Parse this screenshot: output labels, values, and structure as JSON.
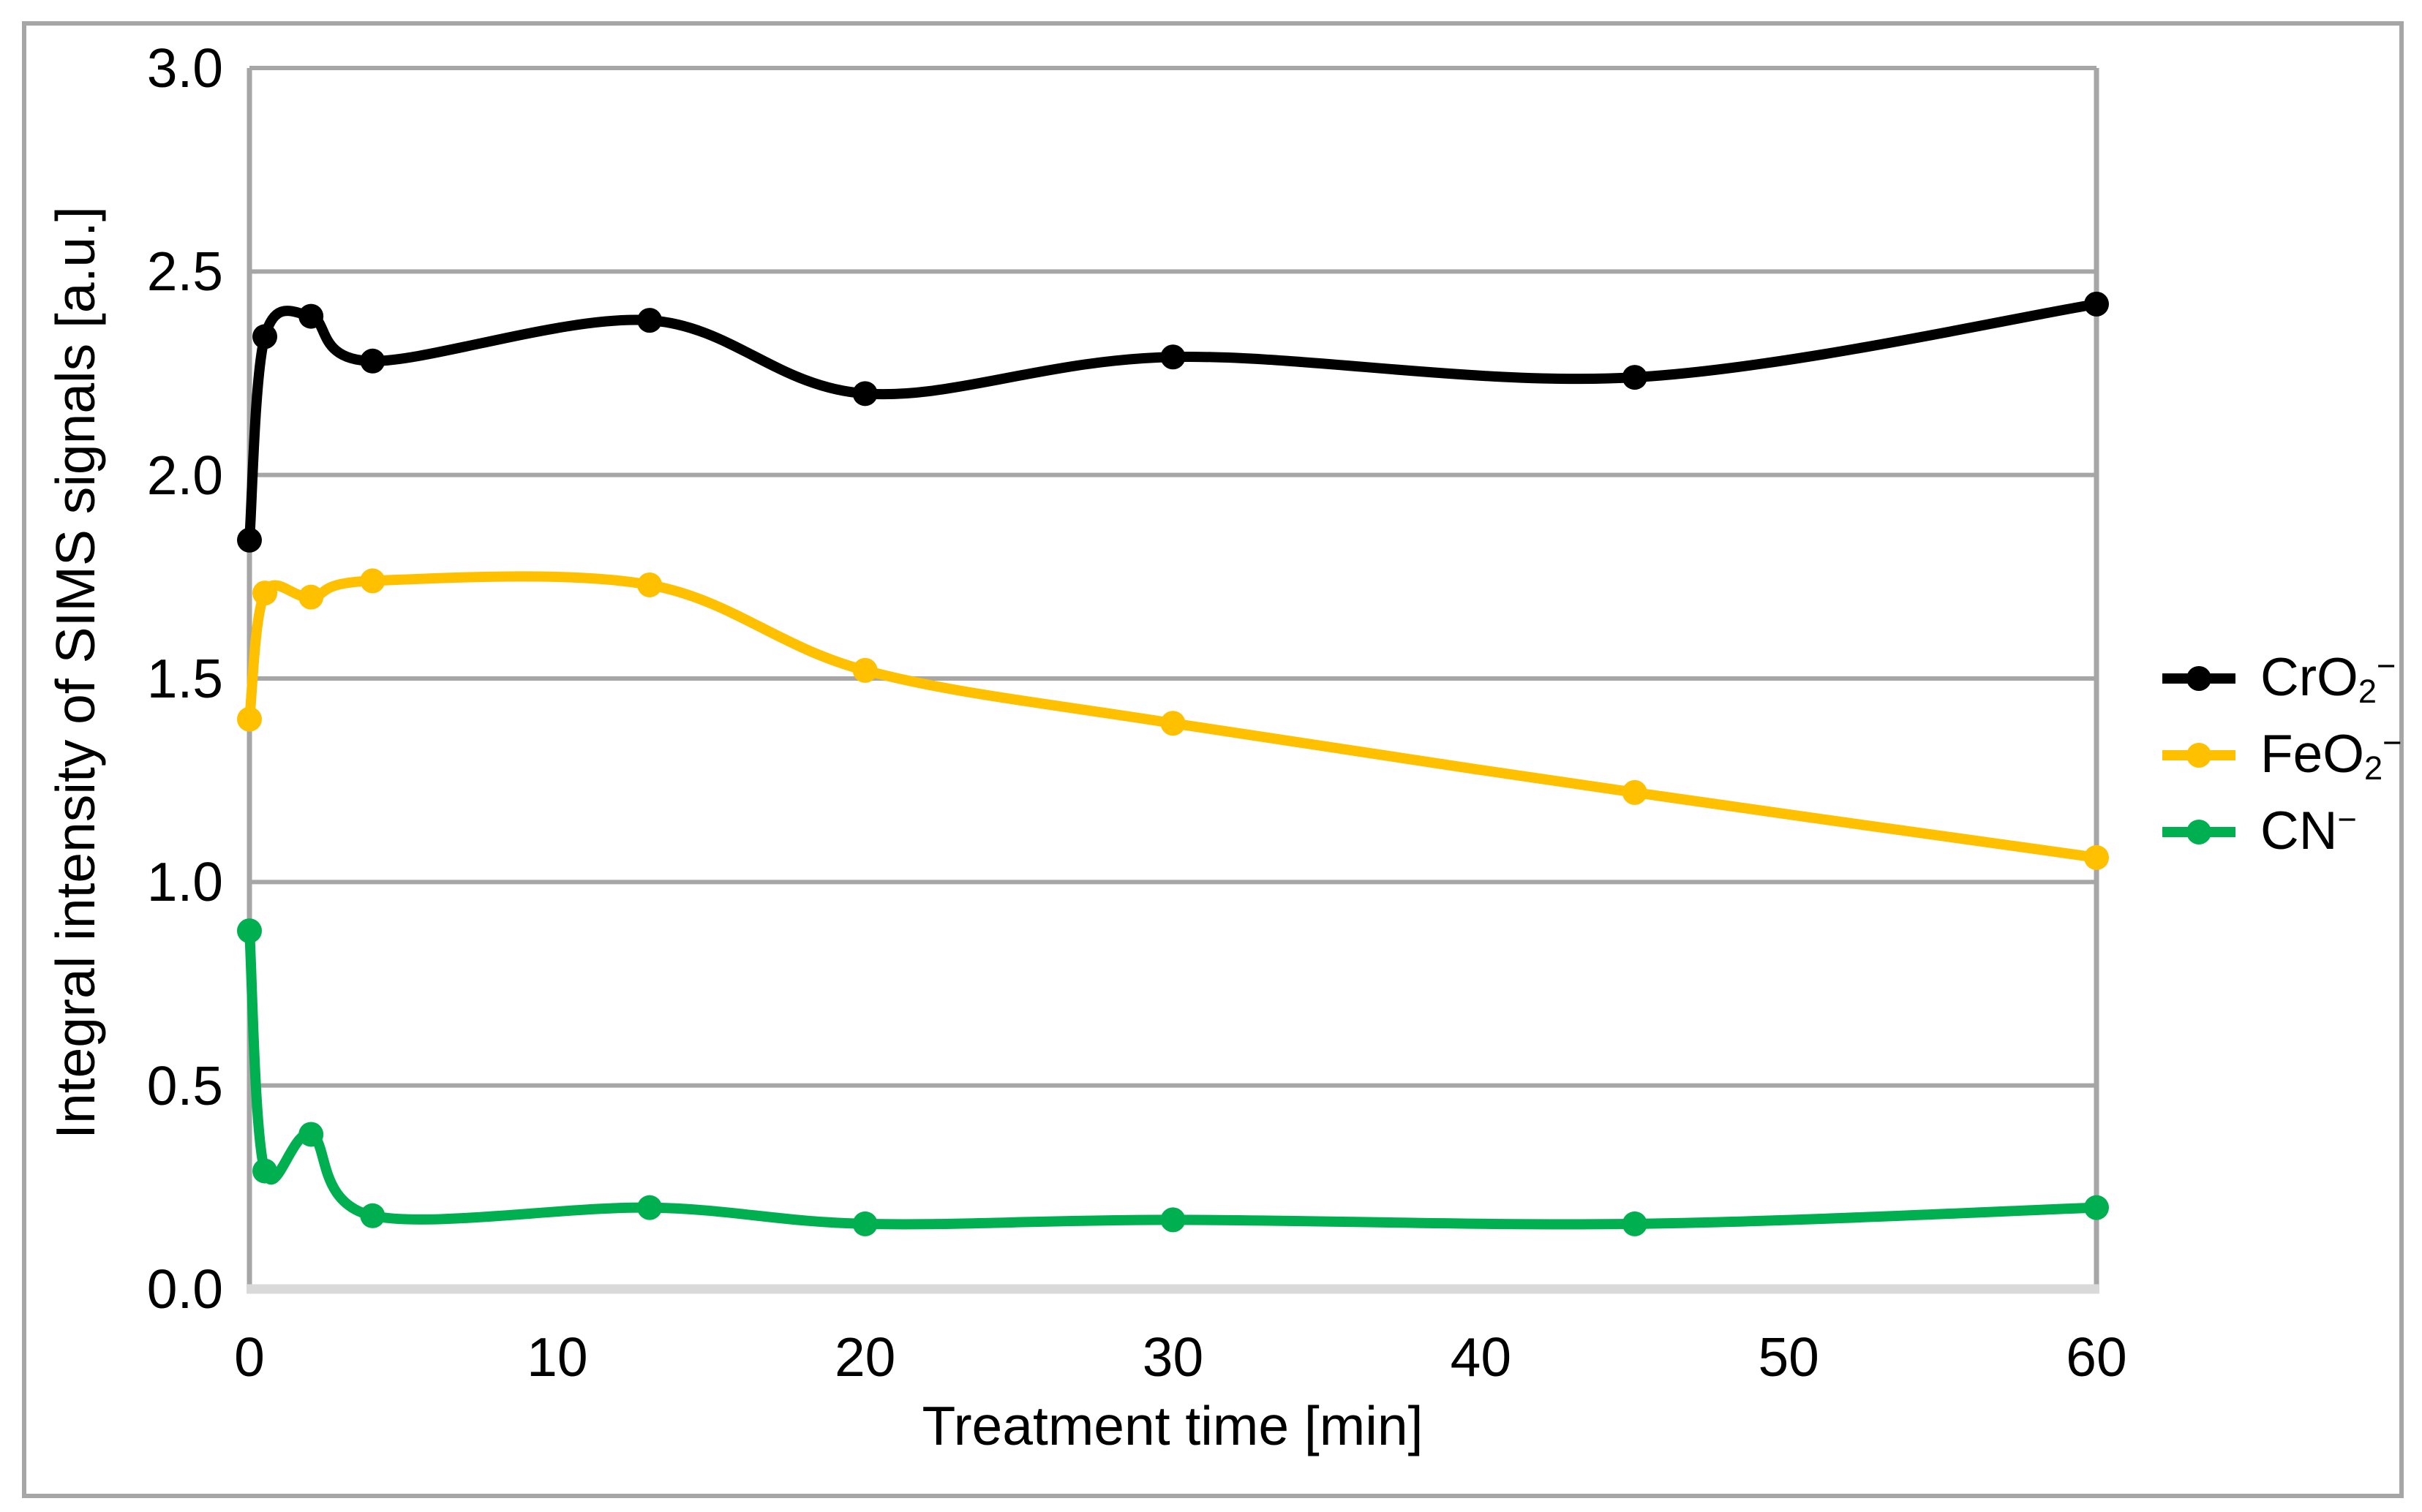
{
  "figure": {
    "y_axis_title": "Integral intensity of SIMS signals [a.u.]",
    "x_axis_title": "Treatment time [min]",
    "y_ticks": [
      "3.0",
      "2.5",
      "2.0",
      "1.5",
      "1.0",
      "0.5",
      "0.0"
    ],
    "x_ticks": [
      "0",
      "10",
      "20",
      "30",
      "40",
      "50",
      "60"
    ]
  },
  "legend": [
    {
      "label_main": "CrO",
      "label_sub": "2",
      "label_sup": "−",
      "color": "#000000"
    },
    {
      "label_main": "FeO",
      "label_sub": "2",
      "label_sup": "−",
      "color": "#FFC000"
    },
    {
      "label_main": "CN",
      "label_sub": "",
      "label_sup": "−",
      "color": "#00B050"
    }
  ],
  "chart_data": {
    "type": "line",
    "title": "",
    "xlabel": "Treatment time [min]",
    "ylabel": "Integral intensity of SIMS signals [a.u.]",
    "x": [
      0,
      0.5,
      2,
      4,
      13,
      20,
      30,
      45,
      60
    ],
    "series": [
      {
        "name": "CrO2−",
        "color": "#000000",
        "values": [
          1.84,
          2.34,
          2.39,
          2.28,
          2.38,
          2.2,
          2.29,
          2.24,
          2.42
        ]
      },
      {
        "name": "FeO2−",
        "color": "#FFC000",
        "values": [
          1.4,
          1.71,
          1.7,
          1.74,
          1.73,
          1.52,
          1.39,
          1.22,
          1.06
        ]
      },
      {
        "name": "CN−",
        "color": "#00B050",
        "values": [
          0.88,
          0.29,
          0.38,
          0.18,
          0.2,
          0.16,
          0.17,
          0.16,
          0.2
        ]
      }
    ],
    "xlim": [
      0,
      60
    ],
    "ylim": [
      0.0,
      3.0
    ],
    "y_tick_step": 0.5,
    "grid": "horizontal",
    "legend_position": "right",
    "smoothed_lines": true,
    "marker": "circle",
    "colors": {
      "gridline": "#A6A6A6",
      "axis_baseline": "#D9D9D9",
      "outer_border": "#A6A6A6",
      "background": "#FFFFFF"
    }
  }
}
